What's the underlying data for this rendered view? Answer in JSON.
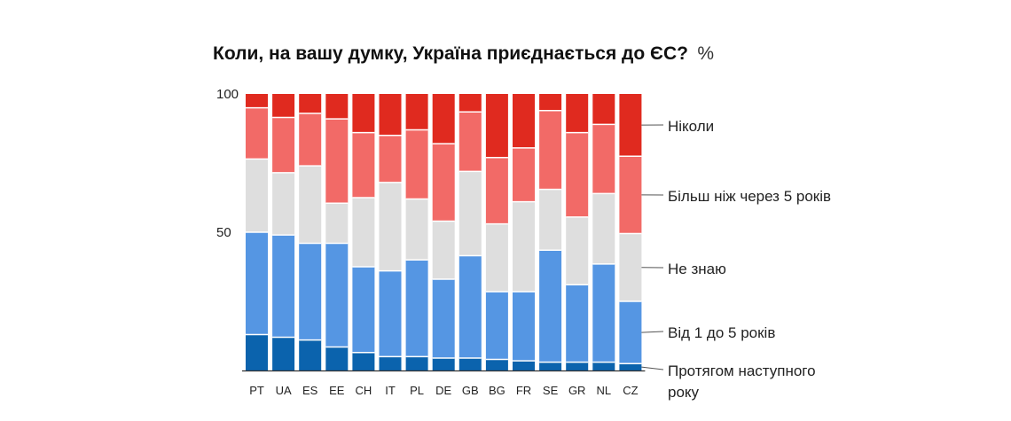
{
  "chart_data": {
    "type": "bar",
    "stacked": true,
    "title": "Коли, на вашу думку, Україна приєднається до ЄС?",
    "unit": "%",
    "xlabel": "",
    "ylabel": "",
    "ylim": [
      0,
      100
    ],
    "yticks": [
      "100",
      "50"
    ],
    "grid": false,
    "legend_position": "right",
    "categories": [
      "PT",
      "UA",
      "ES",
      "EE",
      "CH",
      "IT",
      "PL",
      "DE",
      "GB",
      "BG",
      "FR",
      "SE",
      "GR",
      "NL",
      "CZ"
    ],
    "series": [
      {
        "name": "Протягом наступного року",
        "color": "#0b63ad",
        "values": [
          13,
          12,
          11,
          8.5,
          6.5,
          5,
          5,
          4.5,
          4.5,
          4,
          3.5,
          3,
          3,
          3,
          2.5
        ]
      },
      {
        "name": "Від 1 до 5 років",
        "color": "#5596e3",
        "values": [
          37,
          37,
          35,
          37.5,
          31,
          31,
          35,
          28.5,
          37,
          24.5,
          25,
          40.5,
          28,
          35.5,
          22.5
        ]
      },
      {
        "name": "Не знаю",
        "color": "#dedede",
        "values": [
          26.5,
          22.5,
          28,
          14.5,
          25,
          32,
          22,
          21,
          30.5,
          24.5,
          32.5,
          22,
          24.5,
          25.5,
          24.5
        ]
      },
      {
        "name": "Більш ніж через 5 років",
        "color": "#f26a67",
        "values": [
          18.5,
          20,
          19,
          30.5,
          23.5,
          17,
          25,
          28,
          21.5,
          24,
          19.5,
          28.5,
          30.5,
          25,
          28
        ]
      },
      {
        "name": "Ніколи",
        "color": "#e02a1f",
        "values": [
          5,
          8.5,
          7,
          9,
          14,
          15,
          13,
          18,
          6.5,
          23,
          19.5,
          6,
          14,
          11,
          22.5
        ]
      }
    ],
    "legend": [
      {
        "series": "Ніколи",
        "lines": [
          "Ніколи"
        ]
      },
      {
        "series": "Більш ніж через 5 років",
        "lines": [
          "Більш ніж через 5 років"
        ]
      },
      {
        "series": "Не знаю",
        "lines": [
          "Не знаю"
        ]
      },
      {
        "series": "Від 1 до 5 років",
        "lines": [
          "Від 1 до 5 років"
        ]
      },
      {
        "series": "Протягом наступного року",
        "lines": [
          "Протягом наступного",
          "року"
        ]
      }
    ]
  }
}
